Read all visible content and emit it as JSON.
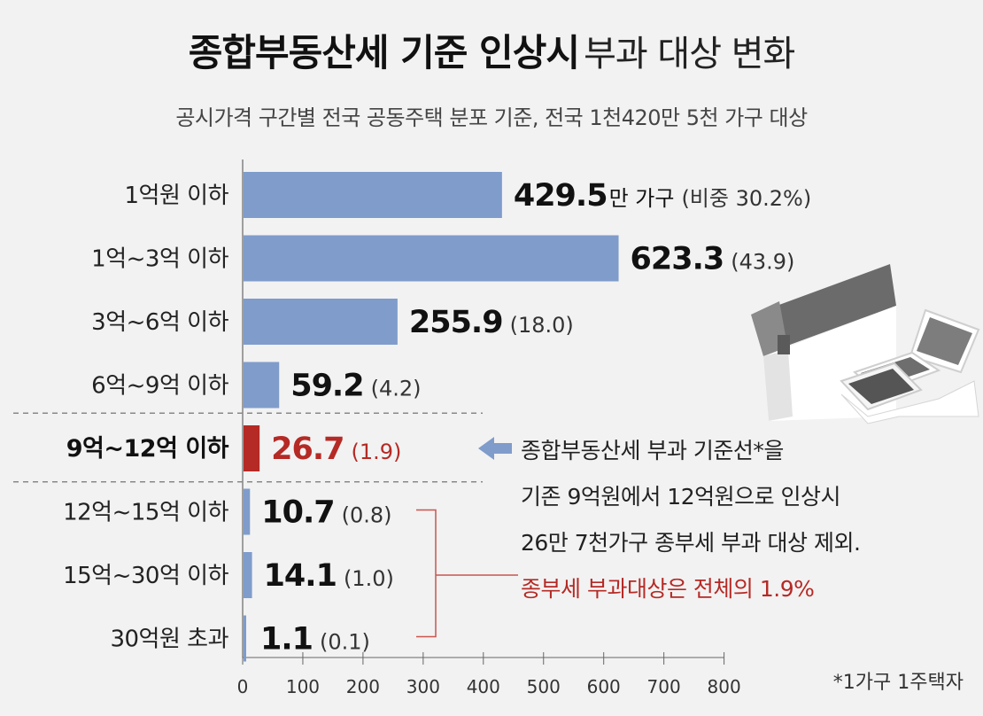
{
  "title": {
    "bold": "종합부동산세 기준 인상시",
    "light": "부과 대상 변화"
  },
  "subtitle": "공시가격 구간별 전국 공동주택 분포 기준, 전국 1천420만 5천 가구 대상",
  "footnote": "*1가구 1주택자",
  "colors": {
    "bar": "#7f9ccb",
    "highlight": "#b52a25",
    "text": "#222222",
    "divider": "#888888"
  },
  "chart_data": {
    "type": "bar",
    "orientation": "horizontal",
    "categories": [
      "1억원 이하",
      "1억~3억 이하",
      "3억~6억 이하",
      "6억~9억 이하",
      "9억~12억 이하",
      "12억~15억 이하",
      "15억~30억 이하",
      "30억원 초과"
    ],
    "values": [
      429.5,
      623.3,
      255.9,
      59.2,
      26.7,
      10.7,
      14.1,
      1.1
    ],
    "value_labels": [
      "429.5",
      "623.3",
      "255.9",
      "59.2",
      "26.7",
      "10.7",
      "14.1",
      "1.1"
    ],
    "shares": [
      "(비중 30.2%)",
      "(43.9)",
      "(18.0)",
      "(4.2)",
      "(1.9)",
      "(0.8)",
      "(1.0)",
      "(0.1)"
    ],
    "first_unit": "만 가구",
    "highlight_index": 4,
    "xlim": [
      0,
      800
    ],
    "xticks": [
      "0",
      "100",
      "200",
      "300",
      "400",
      "500",
      "600",
      "700",
      "800"
    ],
    "xtick_values": [
      0,
      100,
      200,
      300,
      400,
      500,
      600,
      700,
      800
    ],
    "annotation": {
      "lines": [
        "종합부동산세 부과 기준선*을",
        "기존 9억원에서 12억원으로 인상시",
        "26만 7천가구 종부세 부과 대상 제외."
      ],
      "highlight_line": "종부세 부과대상은  전체의 1.9%"
    }
  }
}
